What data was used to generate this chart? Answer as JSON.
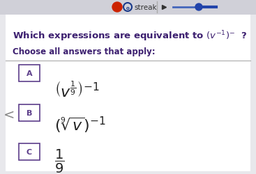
{
  "bg_color": "#e8e8ec",
  "top_bar_color": "#d0d0d8",
  "streak_text": "streak",
  "title_line1": "Which expressions are equivalent to",
  "title_math": "$(v^{-1})^{-}$",
  "title_question": "?",
  "subtitle_text": "Choose all answers that apply:",
  "option_A_label": "A",
  "option_A_math": "$\\left(v^{\\frac{1}{9}}\\right)^{-1}$",
  "option_B_label": "B",
  "option_B_math": "$\\left(\\sqrt[9]{v}\\right)^{-1}$",
  "option_C_label": "C",
  "option_C_math": "$\\dfrac{1}{9}$",
  "box_color": "#5c3d8a",
  "title_color": "#3d2070",
  "text_color": "#3d2070",
  "expr_color": "#222222",
  "nav_arrow_color": "#888888",
  "streak_dot_color": "#cc2200",
  "streak_ring_color": "#1a3a8a",
  "play_color": "#333333",
  "slider_line_color": "#2244aa",
  "slider_dot_color": "#2244aa",
  "sep_color": "#aaaaaa"
}
